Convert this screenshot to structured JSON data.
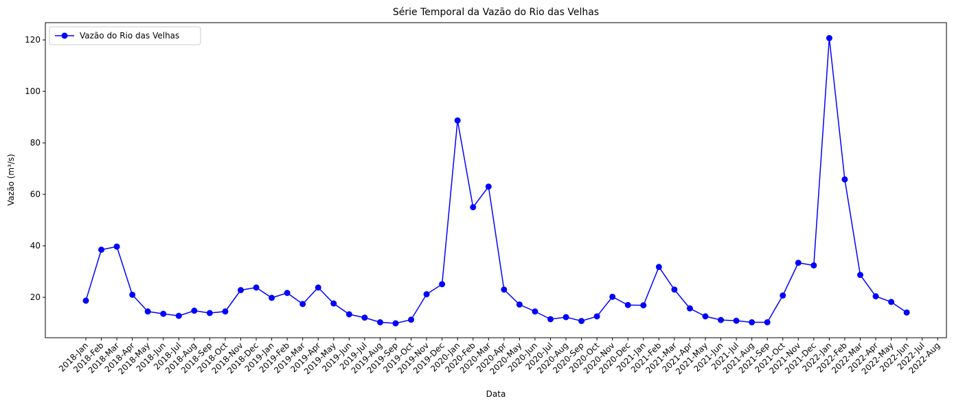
{
  "chart_data": {
    "type": "line",
    "title": "Série Temporal da Vazão do Rio das Velhas",
    "xlabel": "Data",
    "ylabel": "Vazão (m³/s)",
    "categories": [
      "2018-Jan",
      "2018-Feb",
      "2018-Mar",
      "2018-Apr",
      "2018-May",
      "2018-Jun",
      "2018-Jul",
      "2018-Aug",
      "2018-Sep",
      "2018-Oct",
      "2018-Nov",
      "2018-Dec",
      "2019-Jan",
      "2019-Feb",
      "2019-Mar",
      "2019-Apr",
      "2019-May",
      "2019-Jun",
      "2019-Jul",
      "2019-Aug",
      "2019-Sep",
      "2019-Oct",
      "2019-Nov",
      "2019-Dec",
      "2020-Jan",
      "2020-Feb",
      "2020-Mar",
      "2020-Apr",
      "2020-May",
      "2020-Jun",
      "2020-Jul",
      "2020-Aug",
      "2020-Sep",
      "2020-Oct",
      "2020-Nov",
      "2020-Dec",
      "2021-Jan",
      "2021-Feb",
      "2021-Mar",
      "2021-Apr",
      "2021-May",
      "2021-Jun",
      "2021-Jul",
      "2021-Aug",
      "2021-Sep",
      "2021-Oct",
      "2021-Nov",
      "2021-Dec",
      "2022-Jan",
      "2022-Feb",
      "2022-Mar",
      "2022-Apr",
      "2022-May",
      "2022-Jun",
      "2022-Jul",
      "2022-Aug"
    ],
    "series": [
      {
        "name": "Vazão do Rio das Velhas",
        "color": "#0000ff",
        "values": [
          18.7,
          38.5,
          39.7,
          21,
          14.5,
          13.6,
          12.8,
          14.8,
          13.9,
          14.5,
          22.8,
          23.8,
          19.8,
          21.7,
          17.4,
          23.8,
          17.6,
          13.4,
          12.1,
          10.3,
          9.9,
          11.3,
          21.2,
          25.1,
          88.7,
          55,
          63,
          23,
          17.2,
          14.5,
          11.5,
          12.3,
          10.8,
          12.6,
          20.2,
          17,
          16.9,
          31.8,
          23,
          15.7,
          12.6,
          11.2,
          10.9,
          10.3,
          10.3,
          20.7,
          33.4,
          32.4,
          120.7,
          65.8,
          28.7,
          20.4,
          18.2,
          14.1,
          null,
          null
        ]
      }
    ],
    "ylim": [
      4.3,
      126.7
    ],
    "yticks": [
      20,
      40,
      60,
      80,
      100,
      120
    ],
    "legend": "upper left"
  }
}
